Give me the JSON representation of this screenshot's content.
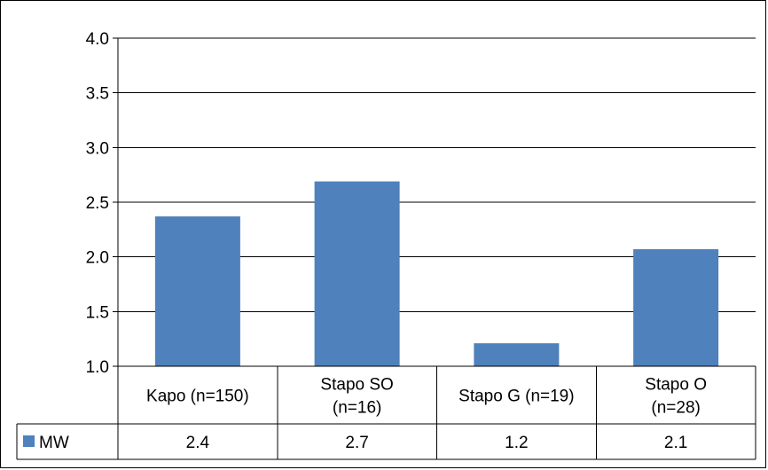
{
  "chart_data": {
    "type": "bar",
    "categories": [
      [
        "Kapo (n=150)"
      ],
      [
        "Stapo SO",
        "(n=16)"
      ],
      [
        "Stapo G (n=19)"
      ],
      [
        "Stapo O",
        "(n=28)"
      ]
    ],
    "series": [
      {
        "name": "MW",
        "values": [
          2.37,
          2.69,
          1.21,
          2.07
        ],
        "color": "#4F81BD"
      }
    ],
    "table_values": [
      "2.4",
      "2.7",
      "1.2",
      "2.1"
    ],
    "y_ticks": [
      "1.0",
      "1.5",
      "2.0",
      "2.5",
      "3.0",
      "3.5",
      "4.0"
    ],
    "ylim": [
      1.0,
      4.0
    ],
    "grid": true,
    "legend": "data-table",
    "colors": {
      "bar": "#4F81BD",
      "grid": "#000000"
    }
  }
}
